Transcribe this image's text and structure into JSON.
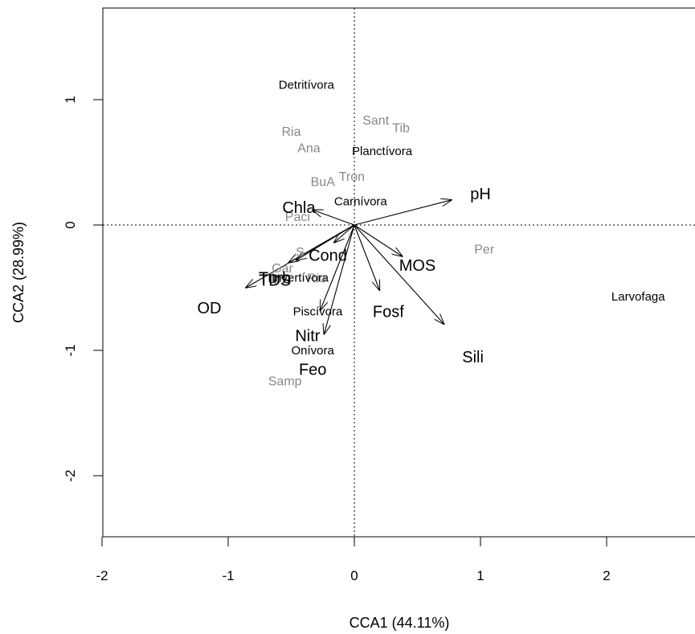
{
  "chart_data": {
    "type": "scatter",
    "subtype": "cca-biplot",
    "title": "",
    "xlabel": "CCA1 (44.11%)",
    "ylabel": "CCA2 (28.99%)",
    "xlim": [
      -2.0,
      2.7
    ],
    "ylim": [
      -2.5,
      1.75
    ],
    "xticks": [
      -2,
      -1,
      0,
      1,
      2
    ],
    "yticks": [
      -2,
      -1,
      0,
      1
    ],
    "grid": false,
    "reference_lines": {
      "x": 0,
      "y": 0,
      "style": "dotted"
    },
    "colors": {
      "sites": "#888888",
      "groups": "#000000",
      "env": "#000000"
    },
    "sites": [
      {
        "label": "Sant",
        "x": 0.17,
        "y": 0.84
      },
      {
        "label": "Tib",
        "x": 0.37,
        "y": 0.78
      },
      {
        "label": "Ria",
        "x": -0.5,
        "y": 0.75
      },
      {
        "label": "Ana",
        "x": -0.36,
        "y": 0.62
      },
      {
        "label": "Tron",
        "x": -0.02,
        "y": 0.39
      },
      {
        "label": "BuA",
        "x": -0.25,
        "y": 0.35
      },
      {
        "label": "Paci",
        "x": -0.45,
        "y": 0.07
      },
      {
        "label": "Per",
        "x": 1.03,
        "y": -0.19
      },
      {
        "label": "S",
        "x": -0.43,
        "y": -0.21
      },
      {
        "label": "Gar",
        "x": -0.57,
        "y": -0.34
      },
      {
        "label": "Rio",
        "x": -0.3,
        "y": -0.42
      },
      {
        "label": "Samp",
        "x": -0.55,
        "y": -1.24
      }
    ],
    "groups": [
      {
        "label": "Detritívora",
        "x": -0.38,
        "y": 1.12
      },
      {
        "label": "Planctívora",
        "x": 0.22,
        "y": 0.59
      },
      {
        "label": "Carnívora",
        "x": 0.05,
        "y": 0.19
      },
      {
        "label": "Invertívora",
        "x": -0.43,
        "y": -0.42
      },
      {
        "label": "Piscívora",
        "x": -0.29,
        "y": -0.69
      },
      {
        "label": "Onívora",
        "x": -0.33,
        "y": -1.0
      },
      {
        "label": "Larvofaga",
        "x": 2.25,
        "y": -0.57
      }
    ],
    "env_vectors": [
      {
        "label": "pH",
        "x": 0.77,
        "y": 0.2,
        "lx": 1.0,
        "ly": 0.25
      },
      {
        "label": "Chla",
        "x": -0.33,
        "y": 0.12,
        "lx": -0.44,
        "ly": 0.14
      },
      {
        "label": "Cond",
        "x": -0.16,
        "y": -0.14,
        "lx": -0.21,
        "ly": -0.24
      },
      {
        "label": "TDS",
        "x": -0.52,
        "y": -0.3,
        "lx": -0.63,
        "ly": -0.44
      },
      {
        "label": "Turb",
        "x": -0.46,
        "y": -0.28,
        "lx": -0.63,
        "ly": -0.42
      },
      {
        "label": "OD",
        "x": -0.86,
        "y": -0.5,
        "lx": -1.15,
        "ly": -0.66
      },
      {
        "label": "MOS",
        "x": 0.38,
        "y": -0.25,
        "lx": 0.5,
        "ly": -0.32
      },
      {
        "label": "Fosf",
        "x": 0.2,
        "y": -0.52,
        "lx": 0.27,
        "ly": -0.69
      },
      {
        "label": "Sili",
        "x": 0.71,
        "y": -0.79,
        "lx": 0.94,
        "ly": -1.05
      },
      {
        "label": "Nitr",
        "x": -0.27,
        "y": -0.68,
        "lx": -0.37,
        "ly": -0.88
      },
      {
        "label": "Feo",
        "x": -0.24,
        "y": -0.87,
        "lx": -0.33,
        "ly": -1.15
      }
    ]
  }
}
